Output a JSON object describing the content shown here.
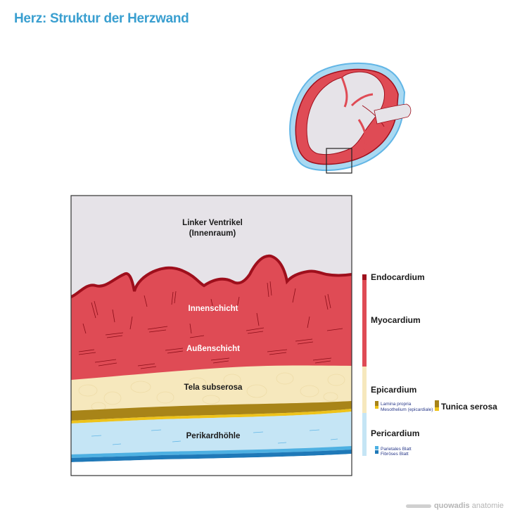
{
  "title": "Herz: Struktur der Herzwand",
  "layers": {
    "lumen": "Linker Ventrikel",
    "lumen_sub": "(Innenraum)",
    "inner": "Innenschicht",
    "outer": "Außenschicht",
    "subserosa": "Tela subserosa",
    "cavity": "Perikardhöhle"
  },
  "legend": {
    "endocardium": "Endocardium",
    "myocardium": "Myocardium",
    "epicardium": "Epicardium",
    "lamina_propria": "Lamina propria",
    "mesothelium": "Mesothelium (epicardiale)",
    "tunica_serosa": "Tunica serosa",
    "pericardium": "Pericardium",
    "parietal": "Parietales Blatt",
    "fibrous": "Fibröses Blatt"
  },
  "logo": {
    "brand": "quowadis",
    "suffix": " anatomie"
  },
  "colors": {
    "title": "#3a9fd0",
    "endocardium": "#9e0f1c",
    "myocardium": "#df4b55",
    "epicardium": "#f6e8bd",
    "lamina_propria": "#a88418",
    "mesothelium": "#eec31a",
    "pericardium": "#c5e5f5",
    "parietal": "#4db0e2",
    "fibrous": "#1f79b8",
    "lumen": "#e6e3e8"
  }
}
